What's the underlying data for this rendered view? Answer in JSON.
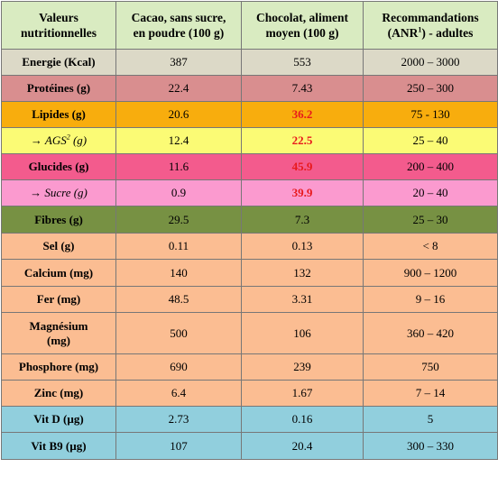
{
  "colors": {
    "header": "#d9ebc1",
    "energie": "#dcd9c7",
    "proteines": "#d98e8f",
    "lipides": "#f8ad0d",
    "ags": "#fbfb75",
    "glucides": "#f35b8d",
    "sucre": "#fb9acf",
    "fibres": "#779143",
    "minerals": "#fbbd92",
    "vitamins": "#91cfdd",
    "highlight_text": "#e8191c"
  },
  "headers": {
    "col1_line1": "Valeurs",
    "col1_line2": "nutritionnelles",
    "col2_line1": "Cacao, sans sucre,",
    "col2_line2": "en poudre (100 g)",
    "col3_line1": "Chocolat, aliment",
    "col3_line2": "moyen  (100 g)",
    "col4_line1": "Recommandations",
    "col4_line2_pre": "(ANR",
    "col4_sup": "1",
    "col4_line2_post": ") - adultes"
  },
  "rows": [
    {
      "label": "Energie (Kcal)",
      "cacao": "387",
      "chocolat": "553",
      "reco": "2000 – 3000"
    },
    {
      "label": "Protéines (g)",
      "cacao": "22.4",
      "chocolat": "7.43",
      "reco": "250 – 300"
    },
    {
      "label": "Lipides (g)",
      "cacao": "20.6",
      "chocolat": "36.2",
      "reco": "75 - 130"
    },
    {
      "arrow": "→",
      "label": "AGS",
      "sup": "2",
      "unit": " (g)",
      "cacao": "12.4",
      "chocolat": "22.5",
      "reco": "25 – 40"
    },
    {
      "label": "Glucides (g)",
      "cacao": "11.6",
      "chocolat": "45.9",
      "reco": "200 – 400"
    },
    {
      "arrow": "→",
      "label": "Sucre (g)",
      "cacao": "0.9",
      "chocolat": "39.9",
      "reco": "20 – 40"
    },
    {
      "label": "Fibres (g)",
      "cacao": "29.5",
      "chocolat": "7.3",
      "reco": "25 – 30"
    },
    {
      "label": "Sel (g)",
      "cacao": "0.11",
      "chocolat": "0.13",
      "reco": "< 8"
    },
    {
      "label": "Calcium (mg)",
      "cacao": "140",
      "chocolat": "132",
      "reco": "900 – 1200"
    },
    {
      "label": "Fer (mg)",
      "cacao": "48.5",
      "chocolat": "3.31",
      "reco": "9 – 16"
    },
    {
      "label_line1": "Magnésium",
      "label_line2": "(mg)",
      "cacao": "500",
      "chocolat": "106",
      "reco": "360 – 420"
    },
    {
      "label": "Phosphore (mg)",
      "cacao": "690",
      "chocolat": "239",
      "reco": "750"
    },
    {
      "label": "Zinc (mg)",
      "cacao": "6.4",
      "chocolat": "1.67",
      "reco": "7 – 14"
    },
    {
      "label": "Vit D (µg)",
      "cacao": "2.73",
      "chocolat": "0.16",
      "reco": "5"
    },
    {
      "label": "Vit B9 (µg)",
      "cacao": "107",
      "chocolat": "20.4",
      "reco": "300 – 330"
    }
  ]
}
